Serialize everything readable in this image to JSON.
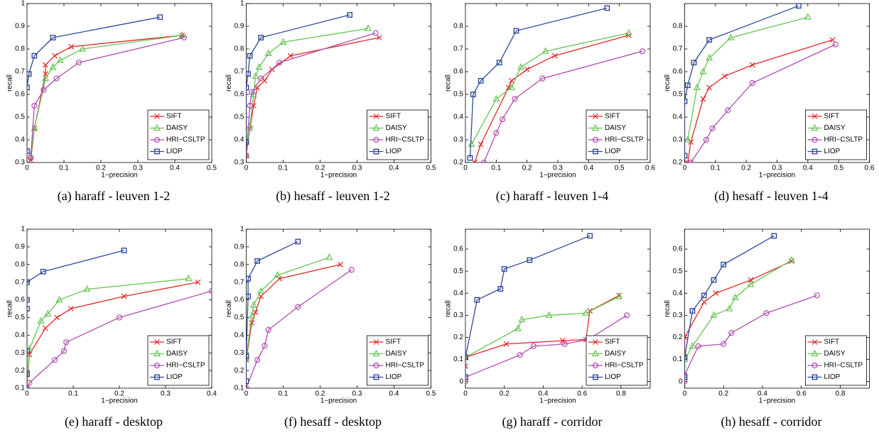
{
  "chart_data": [
    {
      "type": "line",
      "caption": "(a)  haraff - leuven 1-2",
      "xlabel": "1−precision",
      "ylabel": "recall",
      "xlim": [
        0,
        0.5
      ],
      "ylim": [
        0.3,
        1
      ],
      "xticks": [
        0,
        0.1,
        0.2,
        0.3,
        0.4,
        0.5
      ],
      "yticks": [
        0.3,
        0.4,
        0.5,
        0.6,
        0.7,
        0.8,
        0.9,
        1
      ],
      "legend": "lower right",
      "series": [
        {
          "name": "SIFT",
          "color": "#e02828",
          "marker": "x",
          "x": [
            0.01,
            0.02,
            0.05,
            0.05,
            0.075,
            0.12,
            0.42
          ],
          "values": [
            0.31,
            0.45,
            0.69,
            0.73,
            0.77,
            0.81,
            0.86
          ]
        },
        {
          "name": "DAISY",
          "color": "#66c455",
          "marker": "triangle",
          "x": [
            0.01,
            0.02,
            0.05,
            0.07,
            0.09,
            0.15,
            0.42
          ],
          "values": [
            0.33,
            0.45,
            0.67,
            0.72,
            0.75,
            0.8,
            0.86
          ]
        },
        {
          "name": "HRI−CSLTP",
          "color": "#b04cb0",
          "marker": "circle",
          "x": [
            0.01,
            0.02,
            0.045,
            0.08,
            0.14,
            0.425
          ],
          "values": [
            0.32,
            0.55,
            0.62,
            0.67,
            0.74,
            0.85
          ]
        },
        {
          "name": "LIOP",
          "color": "#2f4a9a",
          "marker": "square",
          "x": [
            0,
            0,
            0.005,
            0.02,
            0.07,
            0.36
          ],
          "values": [
            0.35,
            0.63,
            0.69,
            0.77,
            0.85,
            0.94
          ]
        }
      ]
    },
    {
      "type": "line",
      "caption": "(b)  hesaff - leuven 1-2",
      "xlabel": "1−precision",
      "ylabel": "recall",
      "xlim": [
        0,
        0.5
      ],
      "ylim": [
        0.3,
        1
      ],
      "xticks": [
        0,
        0.1,
        0.2,
        0.3,
        0.4,
        0.5
      ],
      "yticks": [
        0.3,
        0.4,
        0.5,
        0.6,
        0.7,
        0.8,
        0.9,
        1
      ],
      "legend": "lower right",
      "series": [
        {
          "name": "SIFT",
          "color": "#e02828",
          "marker": "x",
          "x": [
            0,
            0.01,
            0.02,
            0.03,
            0.05,
            0.07,
            0.12,
            0.36
          ],
          "values": [
            0.33,
            0.45,
            0.55,
            0.63,
            0.66,
            0.71,
            0.77,
            0.85
          ]
        },
        {
          "name": "DAISY",
          "color": "#66c455",
          "marker": "triangle",
          "x": [
            0,
            0.01,
            0.02,
            0.025,
            0.035,
            0.06,
            0.1,
            0.33
          ],
          "values": [
            0.33,
            0.46,
            0.6,
            0.68,
            0.72,
            0.78,
            0.83,
            0.89
          ]
        },
        {
          "name": "HRI−CSLTP",
          "color": "#b04cb0",
          "marker": "circle",
          "x": [
            0,
            0.01,
            0.015,
            0.04,
            0.09,
            0.35
          ],
          "values": [
            0.33,
            0.55,
            0.61,
            0.67,
            0.74,
            0.87
          ]
        },
        {
          "name": "LIOP",
          "color": "#2f4a9a",
          "marker": "square",
          "x": [
            0,
            0,
            0.005,
            0.01,
            0.04,
            0.28
          ],
          "values": [
            0.39,
            0.63,
            0.69,
            0.77,
            0.85,
            0.95
          ]
        }
      ]
    },
    {
      "type": "line",
      "caption": "(c)  haraff - leuven 1-4",
      "xlabel": "1−precision",
      "ylabel": "recall",
      "xlim": [
        0,
        0.6
      ],
      "ylim": [
        0.2,
        0.9
      ],
      "xticks": [
        0,
        0.1,
        0.2,
        0.3,
        0.4,
        0.5,
        0.6
      ],
      "yticks": [
        0.2,
        0.3,
        0.4,
        0.5,
        0.6,
        0.7,
        0.8
      ],
      "legend": "lower right",
      "series": [
        {
          "name": "SIFT",
          "color": "#e02828",
          "marker": "x",
          "x": [
            0.03,
            0.05,
            0.14,
            0.15,
            0.2,
            0.29,
            0.53
          ],
          "values": [
            0.2,
            0.28,
            0.53,
            0.56,
            0.61,
            0.67,
            0.76
          ]
        },
        {
          "name": "DAISY",
          "color": "#66c455",
          "marker": "triangle",
          "x": [
            0.02,
            0.1,
            0.15,
            0.18,
            0.26,
            0.53
          ],
          "values": [
            0.28,
            0.48,
            0.53,
            0.62,
            0.69,
            0.77
          ]
        },
        {
          "name": "HRI−CSLTP",
          "color": "#b04cb0",
          "marker": "circle",
          "x": [
            0.06,
            0.1,
            0.12,
            0.16,
            0.25,
            0.575
          ],
          "values": [
            0.2,
            0.33,
            0.39,
            0.48,
            0.57,
            0.69
          ]
        },
        {
          "name": "LIOP",
          "color": "#2f4a9a",
          "marker": "square",
          "x": [
            0.015,
            0.025,
            0.05,
            0.11,
            0.165,
            0.46
          ],
          "values": [
            0.22,
            0.5,
            0.56,
            0.64,
            0.78,
            0.88
          ]
        }
      ]
    },
    {
      "type": "line",
      "caption": "(d)  hesaff - leuven 1-4",
      "xlabel": "1−precision",
      "ylabel": "recall",
      "xlim": [
        0,
        0.6
      ],
      "ylim": [
        0.2,
        0.9
      ],
      "xticks": [
        0,
        0.1,
        0.2,
        0.3,
        0.4,
        0.5,
        0.6
      ],
      "yticks": [
        0.2,
        0.3,
        0.4,
        0.5,
        0.6,
        0.7,
        0.8
      ],
      "legend": "lower right",
      "series": [
        {
          "name": "SIFT",
          "color": "#e02828",
          "marker": "x",
          "x": [
            0.01,
            0.02,
            0.06,
            0.08,
            0.13,
            0.22,
            0.48
          ],
          "values": [
            0.2,
            0.29,
            0.48,
            0.53,
            0.58,
            0.63,
            0.74
          ]
        },
        {
          "name": "DAISY",
          "color": "#66c455",
          "marker": "triangle",
          "x": [
            0.01,
            0.04,
            0.06,
            0.08,
            0.15,
            0.4
          ],
          "values": [
            0.3,
            0.53,
            0.6,
            0.66,
            0.75,
            0.84
          ]
        },
        {
          "name": "HRI−CSLTP",
          "color": "#b04cb0",
          "marker": "circle",
          "x": [
            0.02,
            0.07,
            0.09,
            0.14,
            0.22,
            0.49
          ],
          "values": [
            0.2,
            0.3,
            0.35,
            0.43,
            0.55,
            0.72
          ]
        },
        {
          "name": "LIOP",
          "color": "#2f4a9a",
          "marker": "square",
          "x": [
            0,
            0,
            0.01,
            0.03,
            0.08,
            0.37
          ],
          "values": [
            0.23,
            0.47,
            0.54,
            0.64,
            0.74,
            0.89
          ]
        }
      ]
    },
    {
      "type": "line",
      "caption": "(e)  haraff - desktop",
      "xlabel": "1−precision",
      "ylabel": "recall",
      "xlim": [
        0,
        0.4
      ],
      "ylim": [
        0.1,
        1
      ],
      "xticks": [
        0,
        0.1,
        0.2,
        0.3,
        0.4
      ],
      "yticks": [
        0.1,
        0.2,
        0.3,
        0.4,
        0.5,
        0.6,
        0.7,
        0.8,
        0.9,
        1
      ],
      "legend": "lower right",
      "series": [
        {
          "name": "SIFT",
          "color": "#e02828",
          "marker": "x",
          "x": [
            0,
            0.005,
            0.04,
            0.065,
            0.095,
            0.21,
            0.37
          ],
          "values": [
            0.1,
            0.29,
            0.44,
            0.5,
            0.55,
            0.62,
            0.7
          ]
        },
        {
          "name": "DAISY",
          "color": "#66c455",
          "marker": "triangle",
          "x": [
            0,
            0.005,
            0.03,
            0.045,
            0.07,
            0.13,
            0.35
          ],
          "values": [
            0.1,
            0.32,
            0.48,
            0.52,
            0.6,
            0.66,
            0.72
          ]
        },
        {
          "name": "HRI−CSLTP",
          "color": "#b04cb0",
          "marker": "circle",
          "x": [
            0,
            0.005,
            0.06,
            0.08,
            0.085,
            0.2,
            0.4
          ],
          "values": [
            0.1,
            0.13,
            0.26,
            0.31,
            0.36,
            0.5,
            0.65
          ]
        },
        {
          "name": "LIOP",
          "color": "#2f4a9a",
          "marker": "square",
          "x": [
            0,
            0,
            0,
            0,
            0,
            0.035,
            0.21
          ],
          "values": [
            0.18,
            0.31,
            0.55,
            0.6,
            0.7,
            0.76,
            0.88
          ]
        }
      ]
    },
    {
      "type": "line",
      "caption": "(f)  hesaff - desktop",
      "xlabel": "1−precision",
      "ylabel": "recall",
      "xlim": [
        0,
        0.5
      ],
      "ylim": [
        0.1,
        1
      ],
      "xticks": [
        0,
        0.1,
        0.2,
        0.3,
        0.4,
        0.5
      ],
      "yticks": [
        0.1,
        0.2,
        0.3,
        0.4,
        0.5,
        0.6,
        0.7,
        0.8,
        0.9,
        1
      ],
      "legend": "lower right",
      "series": [
        {
          "name": "SIFT",
          "color": "#e02828",
          "marker": "x",
          "x": [
            0,
            0.015,
            0.025,
            0.04,
            0.09,
            0.255
          ],
          "values": [
            0.26,
            0.47,
            0.53,
            0.62,
            0.72,
            0.8
          ]
        },
        {
          "name": "DAISY",
          "color": "#66c455",
          "marker": "triangle",
          "x": [
            0,
            0.015,
            0.02,
            0.04,
            0.085,
            0.225
          ],
          "values": [
            0.27,
            0.51,
            0.57,
            0.65,
            0.74,
            0.84
          ]
        },
        {
          "name": "HRI−CSLTP",
          "color": "#b04cb0",
          "marker": "circle",
          "x": [
            0,
            0.03,
            0.05,
            0.06,
            0.14,
            0.285
          ],
          "values": [
            0.1,
            0.26,
            0.34,
            0.43,
            0.56,
            0.77
          ]
        },
        {
          "name": "LIOP",
          "color": "#2f4a9a",
          "marker": "square",
          "x": [
            0,
            0,
            0.005,
            0.005,
            0.03,
            0.14
          ],
          "values": [
            0.14,
            0.28,
            0.62,
            0.72,
            0.82,
            0.93
          ]
        }
      ]
    },
    {
      "type": "line",
      "caption": "(g)  haraff - corridor",
      "xlabel": "1−precision",
      "ylabel": "recall",
      "xlim": [
        0,
        0.95
      ],
      "ylim": [
        -0.03,
        0.69
      ],
      "xticks": [
        0,
        0.2,
        0.4,
        0.6,
        0.8
      ],
      "yticks": [
        0,
        0.1,
        0.2,
        0.3,
        0.4,
        0.5,
        0.6
      ],
      "legend": "lower right",
      "series": [
        {
          "name": "SIFT",
          "color": "#e02828",
          "marker": "x",
          "x": [
            0,
            0,
            0.21,
            0.5,
            0.62,
            0.64,
            0.79
          ],
          "values": [
            0.07,
            0.11,
            0.17,
            0.185,
            0.19,
            0.32,
            0.39
          ]
        },
        {
          "name": "DAISY",
          "color": "#66c455",
          "marker": "triangle",
          "x": [
            0,
            0.27,
            0.29,
            0.43,
            0.62,
            0.79
          ],
          "values": [
            0.11,
            0.24,
            0.28,
            0.3,
            0.31,
            0.385
          ]
        },
        {
          "name": "HRI−CSLTP",
          "color": "#b04cb0",
          "marker": "circle",
          "x": [
            0,
            0,
            0.28,
            0.35,
            0.51,
            0.63,
            0.83
          ],
          "values": [
            0,
            0.02,
            0.12,
            0.16,
            0.17,
            0.19,
            0.3
          ]
        },
        {
          "name": "LIOP",
          "color": "#2f4a9a",
          "marker": "square",
          "x": [
            0,
            0,
            0.06,
            0.18,
            0.2,
            0.33,
            0.64
          ],
          "values": [
            0.02,
            0.11,
            0.37,
            0.42,
            0.51,
            0.55,
            0.66
          ]
        }
      ]
    },
    {
      "type": "line",
      "caption": "(h)  hesaff - corridor",
      "xlabel": "1−precision",
      "ylabel": "recall",
      "xlim": [
        0,
        0.95
      ],
      "ylim": [
        -0.03,
        0.69
      ],
      "xticks": [
        0,
        0.2,
        0.4,
        0.6,
        0.8
      ],
      "yticks": [
        0,
        0.1,
        0.2,
        0.3,
        0.4,
        0.5,
        0.6
      ],
      "legend": "lower right",
      "series": [
        {
          "name": "SIFT",
          "color": "#e02828",
          "marker": "x",
          "x": [
            0,
            0,
            0.1,
            0.16,
            0.34,
            0.55
          ],
          "values": [
            0.11,
            0.2,
            0.36,
            0.4,
            0.46,
            0.545
          ]
        },
        {
          "name": "DAISY",
          "color": "#66c455",
          "marker": "triangle",
          "x": [
            0,
            0.04,
            0.15,
            0.23,
            0.26,
            0.34,
            0.55
          ],
          "values": [
            0.1,
            0.16,
            0.3,
            0.33,
            0.38,
            0.44,
            0.55
          ]
        },
        {
          "name": "HRI−CSLTP",
          "color": "#b04cb0",
          "marker": "circle",
          "x": [
            0,
            0,
            0.07,
            0.2,
            0.24,
            0.42,
            0.68
          ],
          "values": [
            0,
            0.03,
            0.16,
            0.17,
            0.22,
            0.31,
            0.39
          ]
        },
        {
          "name": "LIOP",
          "color": "#2f4a9a",
          "marker": "square",
          "x": [
            0,
            0,
            0.04,
            0.1,
            0.15,
            0.2,
            0.46
          ],
          "values": [
            0.02,
            0.11,
            0.32,
            0.39,
            0.46,
            0.53,
            0.66
          ]
        }
      ]
    }
  ]
}
